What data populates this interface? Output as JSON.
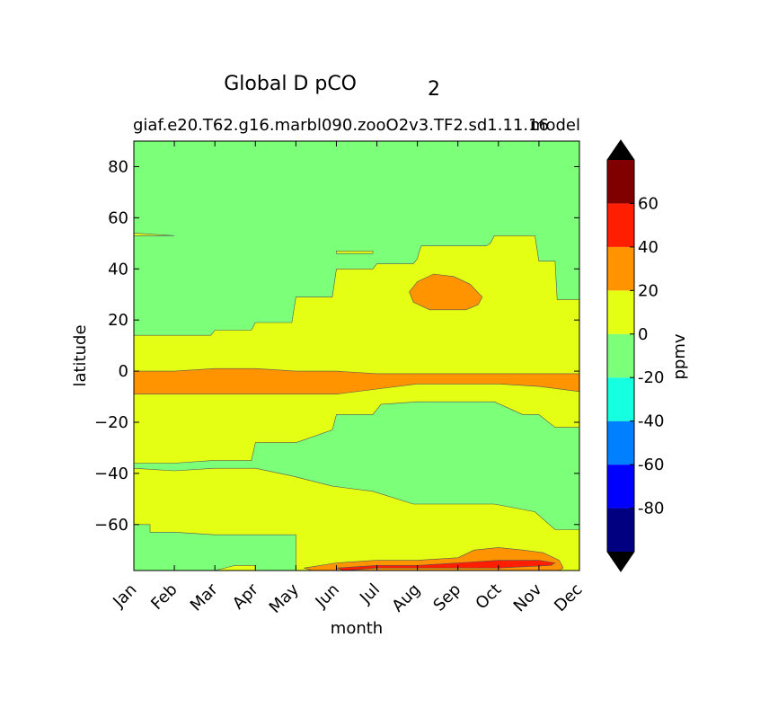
{
  "chart_data": {
    "type": "heatmap",
    "title": "Global D pCO",
    "title_subscript": "2",
    "subtitle_left": "giaf.e20.T62.g16.marbl090.zooO2v3.TF2.sd1.11.16",
    "subtitle_right": "model",
    "xlabel": "month",
    "ylabel": "latitude",
    "x_categories": [
      "Jan",
      "Feb",
      "Mar",
      "Apr",
      "May",
      "Jun",
      "Jul",
      "Aug",
      "Sep",
      "Oct",
      "Nov",
      "Dec"
    ],
    "y_ticks": [
      80,
      60,
      40,
      20,
      0,
      -20,
      -40,
      -60
    ],
    "y_tick_labels": [
      "80",
      "60",
      "40",
      "20",
      "0",
      "−20",
      "−40",
      "−60"
    ],
    "ylim": [
      -78,
      90
    ],
    "grid": false,
    "colorbar": {
      "label": "ppmv",
      "levels": [
        -100,
        -80,
        -60,
        -40,
        -20,
        0,
        20,
        40,
        60,
        80
      ],
      "tick_values": [
        60,
        40,
        20,
        0,
        -20,
        -40,
        -60,
        -80
      ],
      "tick_labels": [
        "60",
        "40",
        "20",
        "0",
        "-20",
        "-40",
        "-60",
        "-80"
      ],
      "colors": [
        "#000080",
        "#0000ff",
        "#0080ff",
        "#15ffe1",
        "#7cff79",
        "#e4ff13",
        "#ff9400",
        "#ff1e00",
        "#800000"
      ],
      "extend": "both",
      "over_color": "#000000",
      "under_color": "#000000"
    },
    "regions": [
      {
        "level_range": [
          -20,
          0
        ],
        "color": "#7cff79",
        "points": [
          [
            0,
            90
          ],
          [
            11,
            90
          ],
          [
            11,
            -78
          ],
          [
            0,
            -78
          ]
        ]
      },
      {
        "level_range": [
          0,
          20
        ],
        "color": "#e4ff13",
        "points": [
          [
            0,
            14
          ],
          [
            1,
            14
          ],
          [
            1.9,
            14
          ],
          [
            2,
            16
          ],
          [
            2.9,
            16
          ],
          [
            3,
            19
          ],
          [
            3.9,
            19
          ],
          [
            4,
            29
          ],
          [
            4.9,
            29
          ],
          [
            5,
            40
          ],
          [
            5.9,
            40
          ],
          [
            6,
            42
          ],
          [
            6.9,
            42
          ],
          [
            7,
            44
          ],
          [
            7.05,
            47
          ],
          [
            7.1,
            49
          ],
          [
            8.7,
            49
          ],
          [
            8.8,
            50
          ],
          [
            8.9,
            53
          ],
          [
            9.9,
            53
          ],
          [
            10,
            43
          ],
          [
            10.4,
            43
          ],
          [
            10.45,
            28
          ],
          [
            11,
            28
          ],
          [
            11,
            -22
          ],
          [
            10.4,
            -22
          ],
          [
            10,
            -17
          ],
          [
            9.6,
            -17
          ],
          [
            8.9,
            -12
          ],
          [
            7.2,
            -12
          ],
          [
            7.0,
            -12
          ],
          [
            6.1,
            -13
          ],
          [
            5.9,
            -17
          ],
          [
            5,
            -17
          ],
          [
            4.9,
            -23
          ],
          [
            4,
            -28
          ],
          [
            3.6,
            -28
          ],
          [
            3,
            -28
          ],
          [
            2.9,
            -35
          ],
          [
            2,
            -35
          ],
          [
            1.9,
            -35
          ],
          [
            1,
            -36
          ],
          [
            0,
            -36
          ],
          [
            0,
            -38
          ],
          [
            1,
            -39
          ],
          [
            2,
            -38
          ],
          [
            3,
            -38
          ],
          [
            3.9,
            -41
          ],
          [
            4.9,
            -45
          ],
          [
            5.9,
            -47
          ],
          [
            6.9,
            -52
          ],
          [
            7.9,
            -52
          ],
          [
            8.9,
            -52
          ],
          [
            9.9,
            -55
          ],
          [
            10.4,
            -62
          ],
          [
            11,
            -62
          ],
          [
            11,
            -78
          ],
          [
            4,
            -78
          ],
          [
            4,
            -64
          ],
          [
            3,
            -64
          ],
          [
            2,
            -64
          ],
          [
            1,
            -63
          ],
          [
            0.4,
            -63
          ],
          [
            0.4,
            -60
          ],
          [
            0,
            -60
          ]
        ]
      },
      {
        "level_range": [
          0,
          20
        ],
        "color": "#e4ff13",
        "points": [
          [
            0,
            53
          ],
          [
            1,
            53
          ],
          [
            0,
            54
          ]
        ]
      },
      {
        "level_range": [
          0,
          20
        ],
        "color": "#e4ff13",
        "points": [
          [
            5,
            47
          ],
          [
            5.9,
            47
          ],
          [
            5.9,
            46
          ],
          [
            5,
            46
          ]
        ]
      },
      {
        "level_range": [
          20,
          40
        ],
        "color": "#ff9400",
        "points": [
          [
            0,
            0
          ],
          [
            1,
            0
          ],
          [
            2,
            1
          ],
          [
            3,
            1
          ],
          [
            4,
            0
          ],
          [
            5,
            0
          ],
          [
            6,
            -1
          ],
          [
            7,
            -1
          ],
          [
            8,
            -1
          ],
          [
            9,
            -1
          ],
          [
            10,
            -1
          ],
          [
            11,
            -1
          ],
          [
            11,
            -8
          ],
          [
            10,
            -6
          ],
          [
            9,
            -5
          ],
          [
            8,
            -5
          ],
          [
            7,
            -5
          ],
          [
            6,
            -7
          ],
          [
            5,
            -9
          ],
          [
            4,
            -9
          ],
          [
            3,
            -9
          ],
          [
            2,
            -9
          ],
          [
            1,
            -9
          ],
          [
            0,
            -9
          ]
        ]
      },
      {
        "level_range": [
          20,
          40
        ],
        "color": "#ff9400",
        "points": [
          [
            7.0,
            35
          ],
          [
            7.4,
            38
          ],
          [
            7.9,
            37
          ],
          [
            8.3,
            34
          ],
          [
            8.6,
            29
          ],
          [
            8.5,
            26
          ],
          [
            8.2,
            24
          ],
          [
            7.3,
            24
          ],
          [
            6.9,
            27
          ],
          [
            6.8,
            31
          ]
        ]
      },
      {
        "level_range": [
          20,
          40
        ],
        "color": "#ff9400",
        "points": [
          [
            4.2,
            -77
          ],
          [
            5,
            -75
          ],
          [
            6,
            -74
          ],
          [
            7,
            -74
          ],
          [
            8,
            -73
          ],
          [
            8.4,
            -70
          ],
          [
            9,
            -69
          ],
          [
            9.6,
            -70
          ],
          [
            10.1,
            -71
          ],
          [
            10.5,
            -74
          ],
          [
            10.6,
            -77
          ],
          [
            10.5,
            -78
          ],
          [
            4.4,
            -78
          ]
        ]
      },
      {
        "level_range": [
          40,
          60
        ],
        "color": "#ff1e00",
        "points": [
          [
            5,
            -77
          ],
          [
            6,
            -76
          ],
          [
            7,
            -76
          ],
          [
            8,
            -75
          ],
          [
            9,
            -74
          ],
          [
            10,
            -74
          ],
          [
            10.4,
            -75
          ],
          [
            10.3,
            -76
          ],
          [
            9,
            -77
          ],
          [
            6,
            -77
          ],
          [
            5.2,
            -78
          ]
        ]
      },
      {
        "level_range": [
          0,
          20
        ],
        "color": "#e4ff13",
        "points": [
          [
            2,
            -78
          ],
          [
            2.5,
            -76
          ],
          [
            3,
            -76
          ],
          [
            3,
            -78
          ]
        ]
      }
    ]
  }
}
